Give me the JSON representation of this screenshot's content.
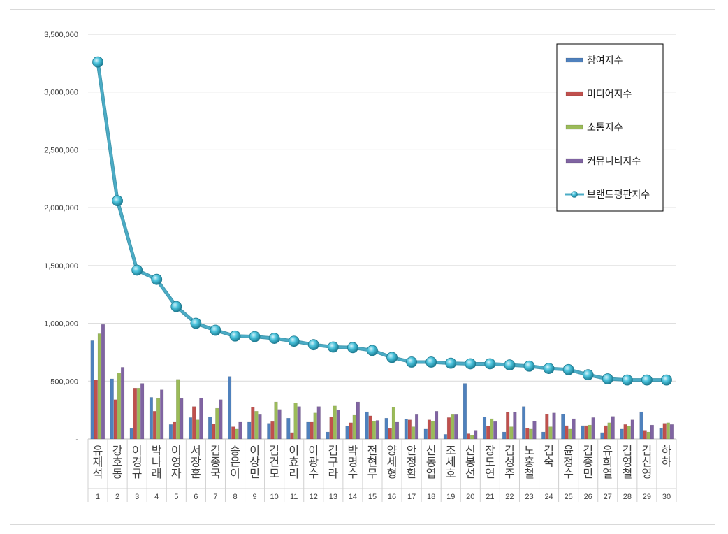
{
  "chart_data": {
    "type": "bar",
    "y_ticks": [
      "-",
      "500,000",
      "1,000,000",
      "1,500,000",
      "2,000,000",
      "2,500,000",
      "3,000,000",
      "3,500,000"
    ],
    "ylim": [
      0,
      3500000
    ],
    "grid": true,
    "legend_placement": "top-right",
    "ranks": [
      "1",
      "2",
      "3",
      "4",
      "5",
      "6",
      "7",
      "8",
      "9",
      "10",
      "11",
      "12",
      "13",
      "14",
      "15",
      "16",
      "17",
      "18",
      "19",
      "20",
      "21",
      "22",
      "23",
      "24",
      "25",
      "26",
      "27",
      "28",
      "29",
      "30"
    ],
    "categories": [
      "유재석",
      "강호동",
      "이경규",
      "박나래",
      "이영자",
      "서장훈",
      "김종국",
      "송은이",
      "이상민",
      "김건모",
      "이효리",
      "이광수",
      "김구라",
      "박명수",
      "전현무",
      "양세형",
      "안정환",
      "신동엽",
      "조세호",
      "신봉선",
      "장도연",
      "김성주",
      "노홍철",
      "김숙",
      "윤정수",
      "김종민",
      "유희열",
      "김영철",
      "김신영",
      "하하"
    ],
    "series": [
      {
        "name": "참여지수",
        "kind": "bar",
        "color": "#4f81bd",
        "values": [
          850000,
          520000,
          90000,
          360000,
          125000,
          185000,
          190000,
          540000,
          145000,
          135000,
          180000,
          145000,
          60000,
          110000,
          235000,
          180000,
          170000,
          85000,
          40000,
          480000,
          190000,
          60000,
          280000,
          60000,
          215000,
          115000,
          55000,
          85000,
          235000,
          95000
        ]
      },
      {
        "name": "미디어지수",
        "kind": "bar",
        "color": "#c0504d",
        "values": [
          510000,
          340000,
          440000,
          240000,
          145000,
          280000,
          130000,
          105000,
          275000,
          150000,
          55000,
          145000,
          190000,
          140000,
          200000,
          90000,
          165000,
          165000,
          185000,
          45000,
          110000,
          230000,
          95000,
          215000,
          115000,
          115000,
          115000,
          125000,
          75000,
          135000
        ]
      },
      {
        "name": "소통지수",
        "kind": "bar",
        "color": "#9bbb59",
        "values": [
          910000,
          570000,
          440000,
          350000,
          515000,
          165000,
          265000,
          85000,
          240000,
          320000,
          310000,
          225000,
          285000,
          205000,
          155000,
          275000,
          105000,
          155000,
          210000,
          35000,
          175000,
          105000,
          85000,
          105000,
          85000,
          120000,
          140000,
          110000,
          60000,
          140000
        ]
      },
      {
        "name": "커뮤니티지수",
        "kind": "bar",
        "color": "#8064a2",
        "values": [
          990000,
          620000,
          480000,
          425000,
          350000,
          355000,
          340000,
          145000,
          210000,
          255000,
          280000,
          280000,
          250000,
          320000,
          160000,
          145000,
          210000,
          240000,
          210000,
          75000,
          150000,
          230000,
          155000,
          225000,
          175000,
          185000,
          195000,
          165000,
          120000,
          125000
        ]
      },
      {
        "name": "브랜드평판지수",
        "kind": "line",
        "color": "#4bacc6",
        "values": [
          3260000,
          2060000,
          1460000,
          1380000,
          1145000,
          1000000,
          940000,
          890000,
          885000,
          870000,
          845000,
          815000,
          795000,
          790000,
          765000,
          705000,
          665000,
          665000,
          655000,
          650000,
          650000,
          640000,
          630000,
          610000,
          600000,
          555000,
          520000,
          510000,
          510000,
          510000
        ]
      }
    ]
  }
}
